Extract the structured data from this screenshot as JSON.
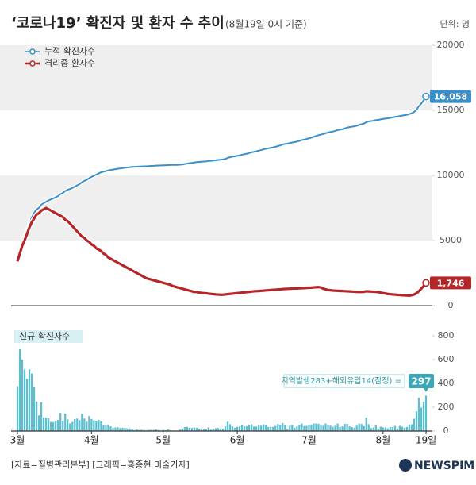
{
  "header": {
    "title": "‘코로나19’ 확진자 및 환자 수 추이",
    "subtitle": "(8월19일 0시 기준)"
  },
  "chart_data": [
    {
      "type": "line",
      "unit": "단위: 명",
      "legend": "top-left",
      "grid": "bands",
      "ylim": [
        0,
        20000
      ],
      "yticks": [
        0,
        5000,
        10000,
        15000,
        20000
      ],
      "series": [
        {
          "name": "누적 확진자수",
          "color": "#3a8fc9",
          "values": [
            3526,
            4212,
            4812,
            5328,
            5766,
            6284,
            6767,
            7134,
            7382,
            7513,
            7755,
            7869,
            7979,
            8086,
            8162,
            8236,
            8320,
            8413,
            8565,
            8652,
            8799,
            8897,
            8961,
            9037,
            9137,
            9241,
            9332,
            9478,
            9583,
            9661,
            9786,
            9887,
            9976,
            10062,
            10156,
            10237,
            10284,
            10331,
            10384,
            10423,
            10450,
            10480,
            10512,
            10537,
            10564,
            10591,
            10613,
            10635,
            10653,
            10661,
            10674,
            10683,
            10694,
            10702,
            10708,
            10718,
            10728,
            10738,
            10752,
            10761,
            10765,
            10774,
            10780,
            10793,
            10801,
            10804,
            10806,
            10810,
            10822,
            10840,
            10874,
            10909,
            10936,
            10962,
            10991,
            11018,
            11037,
            11050,
            11065,
            11078,
            11110,
            11122,
            11142,
            11165,
            11190,
            11206,
            11225,
            11265,
            11344,
            11402,
            11441,
            11468,
            11503,
            11541,
            11590,
            11629,
            11668,
            11719,
            11776,
            11814,
            11852,
            11902,
            11947,
            12003,
            12051,
            12085,
            12121,
            12155,
            12198,
            12257,
            12306,
            12373,
            12421,
            12438,
            12484,
            12535,
            12563,
            12602,
            12653,
            12715,
            12757,
            12800,
            12850,
            12904,
            12967,
            13030,
            13091,
            13137,
            13181,
            13244,
            13293,
            13338,
            13373,
            13417,
            13479,
            13512,
            13551,
            13612,
            13672,
            13711,
            13745,
            13771,
            13816,
            13879,
            13938,
            13979,
            14092,
            14150,
            14175,
            14203,
            14251,
            14269,
            14305,
            14336,
            14366,
            14389,
            14423,
            14456,
            14499,
            14519,
            14562,
            14598,
            14626,
            14660,
            14714,
            14770,
            14873,
            15039,
            15318,
            15515,
            15761,
            16058
          ],
          "value_labels": [
            null,
            null,
            null,
            null,
            null,
            null,
            null,
            null,
            null,
            null,
            null,
            null,
            null,
            null,
            null,
            null,
            null,
            null,
            null,
            null,
            null,
            null,
            null,
            null,
            null,
            null,
            null,
            null,
            null,
            null,
            null,
            null,
            null,
            null,
            null,
            null,
            null,
            null,
            null,
            null,
            null,
            null,
            null,
            null,
            null,
            null,
            null,
            null,
            null,
            null,
            null,
            null,
            null,
            null,
            null,
            null,
            null,
            null,
            null,
            null,
            null,
            null,
            null,
            null,
            null,
            null,
            null,
            null,
            null,
            null,
            null,
            null,
            null,
            null,
            null,
            null,
            null,
            null,
            null,
            null,
            null,
            null,
            null,
            null,
            null,
            null,
            null,
            null,
            null,
            null,
            null,
            null,
            null,
            null,
            null,
            null,
            null,
            null,
            null,
            null,
            null,
            null,
            null,
            null,
            null,
            null,
            null,
            null,
            null,
            null,
            null,
            null,
            null,
            null,
            null,
            null,
            null,
            null,
            null,
            null,
            null,
            null,
            null,
            null,
            null,
            null,
            null,
            null,
            null,
            null,
            null,
            null,
            null,
            null,
            null,
            null,
            null,
            null,
            null,
            null,
            null,
            null,
            null,
            null,
            null,
            null,
            null,
            null,
            null,
            null,
            null,
            null,
            null,
            null,
            null,
            null,
            null,
            null,
            null,
            null,
            null,
            null,
            null,
            null,
            null,
            null,
            null,
            null,
            null,
            null,
            null,
            "16,058"
          ]
        },
        {
          "name": "격리중 환자수",
          "color": "#b5262b",
          "values": [
            3400,
            4000,
            4600,
            5000,
            5500,
            6000,
            6400,
            6700,
            7000,
            7100,
            7300,
            7400,
            7500,
            7400,
            7300,
            7200,
            7100,
            7000,
            6900,
            6800,
            6600,
            6500,
            6300,
            6100,
            5900,
            5700,
            5500,
            5300,
            5200,
            5000,
            4900,
            4700,
            4600,
            4400,
            4300,
            4200,
            4000,
            3900,
            3700,
            3600,
            3500,
            3400,
            3300,
            3200,
            3100,
            3000,
            2900,
            2800,
            2700,
            2600,
            2500,
            2400,
            2300,
            2200,
            2100,
            2050,
            2000,
            1950,
            1900,
            1850,
            1800,
            1750,
            1700,
            1650,
            1600,
            1500,
            1450,
            1400,
            1350,
            1300,
            1250,
            1200,
            1150,
            1100,
            1050,
            1050,
            1000,
            980,
            960,
            950,
            920,
            900,
            880,
            860,
            850,
            840,
            840,
            860,
            880,
            900,
            920,
            940,
            960,
            980,
            1000,
            1020,
            1040,
            1060,
            1080,
            1100,
            1110,
            1120,
            1140,
            1150,
            1170,
            1180,
            1200,
            1210,
            1220,
            1240,
            1250,
            1270,
            1280,
            1290,
            1300,
            1310,
            1320,
            1320,
            1330,
            1340,
            1350,
            1360,
            1370,
            1380,
            1400,
            1410,
            1420,
            1400,
            1300,
            1250,
            1200,
            1180,
            1160,
            1150,
            1140,
            1130,
            1120,
            1110,
            1100,
            1090,
            1080,
            1070,
            1060,
            1050,
            1050,
            1060,
            1100,
            1090,
            1080,
            1070,
            1060,
            1040,
            1000,
            960,
            930,
            900,
            880,
            860,
            850,
            830,
            820,
            800,
            790,
            780,
            770,
            800,
            850,
            950,
            1100,
            1300,
            1500,
            1746
          ],
          "value_labels": [
            null,
            null,
            null,
            null,
            null,
            null,
            null,
            null,
            null,
            null,
            null,
            null,
            null,
            null,
            null,
            null,
            null,
            null,
            null,
            null,
            null,
            null,
            null,
            null,
            null,
            null,
            null,
            null,
            null,
            null,
            null,
            null,
            null,
            null,
            null,
            null,
            null,
            null,
            null,
            null,
            null,
            null,
            null,
            null,
            null,
            null,
            null,
            null,
            null,
            null,
            null,
            null,
            null,
            null,
            null,
            null,
            null,
            null,
            null,
            null,
            null,
            null,
            null,
            null,
            null,
            null,
            null,
            null,
            null,
            null,
            null,
            null,
            null,
            null,
            null,
            null,
            null,
            null,
            null,
            null,
            null,
            null,
            null,
            null,
            null,
            null,
            null,
            null,
            null,
            null,
            null,
            null,
            null,
            null,
            null,
            null,
            null,
            null,
            null,
            null,
            null,
            null,
            null,
            null,
            null,
            null,
            null,
            null,
            null,
            null,
            null,
            null,
            null,
            null,
            null,
            null,
            null,
            null,
            null,
            null,
            null,
            null,
            null,
            null,
            null,
            null,
            null,
            null,
            null,
            null,
            null,
            null,
            null,
            null,
            null,
            null,
            null,
            null,
            null,
            null,
            null,
            null,
            null,
            null,
            null,
            null,
            null,
            null,
            null,
            null,
            null,
            null,
            null,
            null,
            null,
            null,
            null,
            null,
            null,
            null,
            null,
            null,
            null,
            null,
            null,
            null,
            null,
            null,
            null,
            null,
            null,
            "1,746"
          ]
        }
      ]
    },
    {
      "type": "bar",
      "title": "신규 확진자수",
      "color": "#5bbfcf",
      "ylim": [
        0,
        800
      ],
      "yticks": [
        0,
        200,
        400,
        600,
        800
      ],
      "categories": [
        "3월",
        null,
        null,
        null,
        null,
        null,
        null,
        null,
        null,
        null,
        null,
        null,
        null,
        null,
        null,
        null,
        null,
        null,
        null,
        null,
        null,
        null,
        null,
        null,
        null,
        null,
        null,
        null,
        null,
        null,
        null,
        "4월",
        null,
        null,
        null,
        null,
        null,
        null,
        null,
        null,
        null,
        null,
        null,
        null,
        null,
        null,
        null,
        null,
        null,
        null,
        null,
        null,
        null,
        null,
        null,
        null,
        null,
        null,
        null,
        null,
        null,
        "5월",
        null,
        null,
        null,
        null,
        null,
        null,
        null,
        null,
        null,
        null,
        null,
        null,
        null,
        null,
        null,
        null,
        null,
        null,
        null,
        null,
        null,
        null,
        null,
        null,
        null,
        null,
        null,
        null,
        null,
        null,
        "6월",
        null,
        null,
        null,
        null,
        null,
        null,
        null,
        null,
        null,
        null,
        null,
        null,
        null,
        null,
        null,
        null,
        null,
        null,
        null,
        null,
        null,
        null,
        null,
        null,
        null,
        null,
        null,
        null,
        null,
        "7월",
        null,
        null,
        null,
        null,
        null,
        null,
        null,
        null,
        null,
        null,
        null,
        null,
        null,
        null,
        null,
        null,
        null,
        null,
        null,
        null,
        null,
        null,
        null,
        null,
        null,
        null,
        null,
        null,
        null,
        null,
        "8월",
        null,
        null,
        null,
        null,
        null,
        null,
        null,
        null,
        null,
        null,
        null,
        null,
        null,
        null,
        null,
        null,
        null,
        "19일"
      ],
      "values": [
        376,
        686,
        600,
        516,
        438,
        518,
        483,
        367,
        248,
        131,
        242,
        114,
        110,
        107,
        76,
        74,
        84,
        93,
        152,
        87,
        147,
        98,
        64,
        76,
        100,
        104,
        91,
        146,
        105,
        78,
        125,
        101,
        89,
        86,
        94,
        81,
        47,
        47,
        53,
        39,
        27,
        30,
        32,
        25,
        27,
        27,
        22,
        22,
        18,
        8,
        13,
        9,
        11,
        8,
        6,
        10,
        10,
        10,
        14,
        9,
        4,
        9,
        6,
        13,
        8,
        3,
        2,
        4,
        12,
        18,
        34,
        35,
        27,
        26,
        29,
        27,
        19,
        13,
        15,
        13,
        32,
        12,
        20,
        23,
        25,
        16,
        19,
        40,
        79,
        58,
        39,
        27,
        35,
        38,
        49,
        39,
        39,
        51,
        57,
        38,
        38,
        50,
        45,
        56,
        48,
        34,
        36,
        34,
        43,
        59,
        49,
        67,
        48,
        17,
        46,
        51,
        28,
        39,
        51,
        62,
        42,
        43,
        50,
        54,
        63,
        63,
        61,
        46,
        44,
        63,
        49,
        45,
        35,
        44,
        62,
        33,
        39,
        61,
        60,
        39,
        34,
        26,
        45,
        63,
        59,
        41,
        113,
        58,
        25,
        28,
        48,
        18,
        36,
        31,
        30,
        23,
        34,
        33,
        43,
        20,
        43,
        36,
        28,
        34,
        54,
        56,
        103,
        166,
        279,
        197,
        246,
        297
      ],
      "annotation": "지역발생283+해외유입14(잠정) ="
    }
  ],
  "footer": {
    "source": "[자료=질병관리본부] [그래픽=홍종현 미술기자]",
    "logo": "NEWSPIM"
  }
}
